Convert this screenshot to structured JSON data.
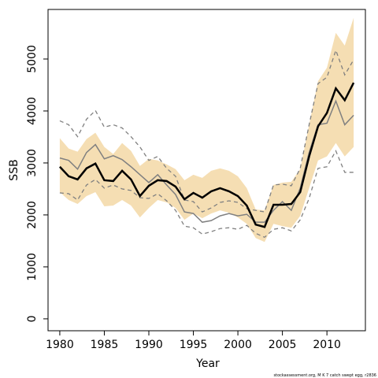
{
  "chart_data": {
    "type": "line",
    "xlabel": "Year",
    "ylabel": "SSB",
    "footnote": "stockassessment.org, M K 7 catch swept egg, r2836",
    "x": [
      1980,
      1981,
      1982,
      1983,
      1984,
      1985,
      1986,
      1987,
      1988,
      1989,
      1990,
      1991,
      1992,
      1993,
      1994,
      1995,
      1996,
      1997,
      1998,
      1999,
      2000,
      2001,
      2002,
      2003,
      2004,
      2005,
      2006,
      2007,
      2008,
      2009,
      2010,
      2011,
      2012,
      2013
    ],
    "xlim": [
      1978.68,
      2014.32
    ],
    "xticks": [
      1980,
      1985,
      1990,
      1995,
      2000,
      2005,
      2010
    ],
    "ylim": [
      -229,
      5954
    ],
    "yticks": [
      0,
      1000,
      2000,
      3000,
      4000,
      5000
    ],
    "band": {
      "color": "#f5deb3",
      "upper": [
        3476,
        3277,
        3216,
        3460,
        3582,
        3308,
        3171,
        3384,
        3232,
        2942,
        3079,
        3049,
        2973,
        2881,
        2668,
        2774,
        2713,
        2850,
        2896,
        2850,
        2744,
        2515,
        2104,
        2088,
        2576,
        2622,
        2637,
        2881,
        3735,
        4573,
        4832,
        5503,
        5259,
        5793
      ],
      "lower": [
        2439,
        2287,
        2210,
        2363,
        2439,
        2165,
        2180,
        2287,
        2180,
        1951,
        2134,
        2287,
        2241,
        2134,
        1905,
        2027,
        1936,
        2027,
        2088,
        2043,
        1951,
        1829,
        1555,
        1479,
        1829,
        1784,
        1753,
        1982,
        2515,
        3049,
        3125,
        3384,
        3125,
        3308
      ]
    },
    "series": [
      {
        "color": "#808080",
        "dashed": true,
        "width": 1.3,
        "values": [
          3811,
          3735,
          3506,
          3841,
          4009,
          3689,
          3735,
          3674,
          3506,
          3308,
          3049,
          3125,
          2896,
          2744,
          2287,
          2256,
          2058,
          2134,
          2241,
          2271,
          2241,
          2119,
          2088,
          2058,
          2576,
          2591,
          2561,
          2896,
          3735,
          4527,
          4649,
          5168,
          4695,
          4985
        ]
      },
      {
        "color": "#808080",
        "dashed": true,
        "width": 1.3,
        "values": [
          2424,
          2409,
          2287,
          2576,
          2683,
          2515,
          2576,
          2500,
          2470,
          2332,
          2317,
          2409,
          2271,
          2088,
          1784,
          1753,
          1631,
          1677,
          1738,
          1753,
          1723,
          1799,
          1646,
          1570,
          1723,
          1753,
          1692,
          1905,
          2317,
          2896,
          2927,
          3232,
          2820,
          2820
        ]
      },
      {
        "color": "#808080",
        "dashed": false,
        "width": 1.5,
        "values": [
          3095,
          3049,
          2881,
          3201,
          3354,
          3079,
          3140,
          3064,
          2927,
          2774,
          2622,
          2774,
          2576,
          2393,
          2058,
          2027,
          1860,
          1890,
          1982,
          2027,
          1982,
          2012,
          1860,
          1860,
          2088,
          2256,
          2088,
          2515,
          3201,
          3735,
          3765,
          4192,
          3735,
          3918
        ]
      },
      {
        "color": "#000000",
        "dashed": false,
        "width": 2.5,
        "values": [
          2927,
          2744,
          2683,
          2896,
          2988,
          2668,
          2652,
          2850,
          2683,
          2363,
          2561,
          2668,
          2652,
          2546,
          2302,
          2424,
          2332,
          2454,
          2515,
          2454,
          2363,
          2180,
          1814,
          1768,
          2195,
          2195,
          2210,
          2439,
          3125,
          3704,
          3963,
          4436,
          4207,
          4543
        ]
      }
    ]
  }
}
